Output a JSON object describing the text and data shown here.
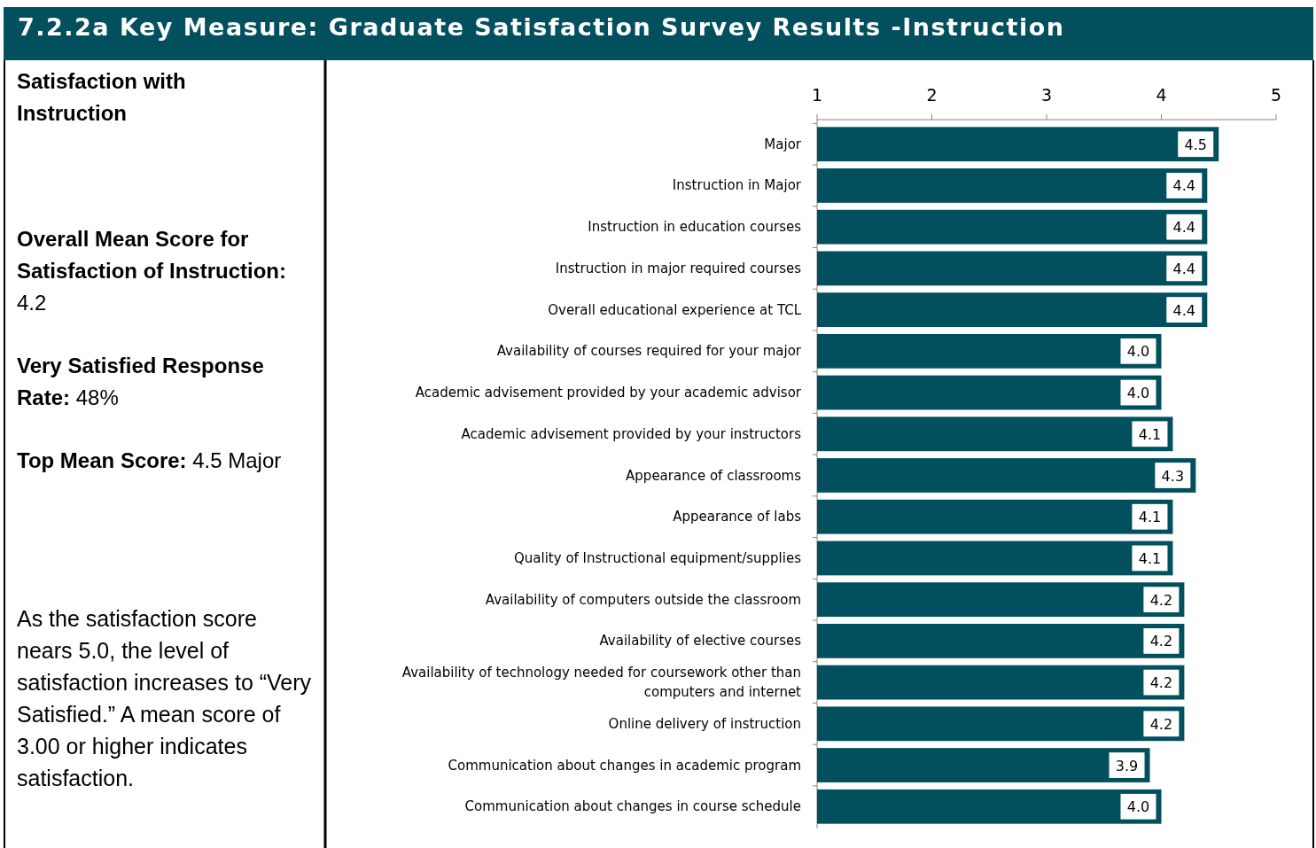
{
  "chart_data": {
    "type": "bar",
    "orientation": "horizontal",
    "title": "7.2.2a Key Measure: Graduate Satisfaction Survey Results -Instruction",
    "categories": [
      "Major",
      "Instruction in Major",
      "Instruction in education courses",
      "Instruction in major required courses",
      "Overall educational experience at TCL",
      "Availability of courses required for your major",
      "Academic advisement provided by your academic advisor",
      "Academic advisement provided by your instructors",
      "Appearance of classrooms",
      "Appearance of labs",
      "Quality of Instructional equipment/supplies",
      "Availability of computers outside the classroom",
      "Availability of elective courses",
      "Availability of technology needed for coursework other than computers and internet",
      "Online delivery of instruction",
      "Communication about changes in academic program",
      "Communication about changes in  course schedule"
    ],
    "values": [
      4.5,
      4.4,
      4.4,
      4.4,
      4.4,
      4.0,
      4.0,
      4.1,
      4.3,
      4.1,
      4.1,
      4.2,
      4.2,
      4.2,
      4.2,
      3.9,
      4.0
    ],
    "value_labels": [
      "4.5",
      "4.4",
      "4.4",
      "4.4",
      "4.4",
      "4.0",
      "4.0",
      "4.1",
      "4.3",
      "4.1",
      "4.1",
      "4.2",
      "4.2",
      "4.2",
      "4.2",
      "3.9",
      "4.0"
    ],
    "color": "#02505e",
    "xlim": [
      1,
      5
    ],
    "xticks": [
      1,
      2,
      3,
      4,
      5
    ],
    "grid": false,
    "annotations": [
      "Satisfaction with Instruction",
      "Overall Mean Score for Satisfaction of  Instruction: 4.2",
      "Very Satisfied Response Rate: 48%",
      "Top Mean Score: 4.5 Major",
      "As the satisfaction score nears 5.0, the level of satisfaction increases to “Very Satisfied.”  A mean score of 3.00 or higher indicates satisfaction."
    ]
  }
}
